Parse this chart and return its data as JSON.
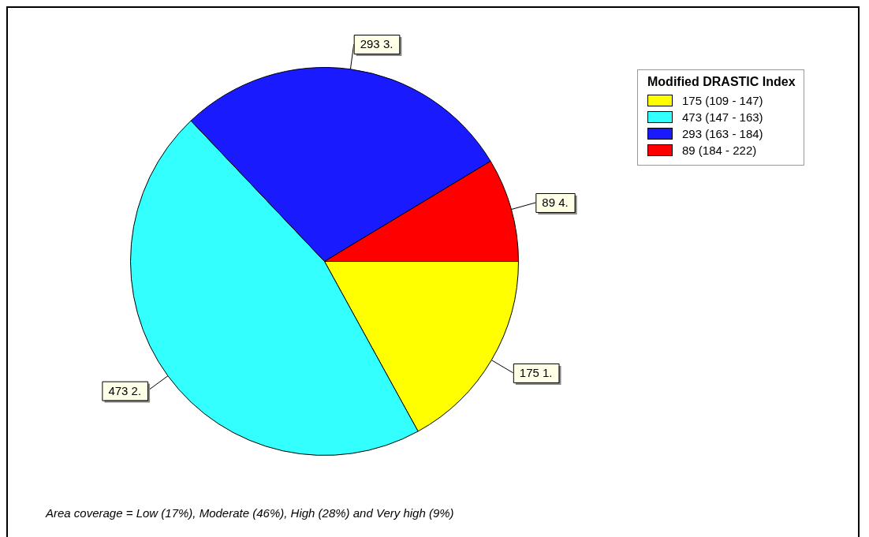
{
  "chart_data": {
    "type": "pie",
    "legend_title": "Modified DRASTIC Index",
    "legend": "top right",
    "categories": [
      "175 (109 - 147)",
      "473 (147 - 163)",
      "293 (163 - 184)",
      "89 (184 - 222)"
    ],
    "values": [
      175,
      473,
      293,
      89
    ],
    "colors": [
      "#ffff00",
      "#33ffff",
      "#1a1aff",
      "#ff0000"
    ],
    "value_labels": [
      "175 1.",
      "473 2.",
      "293 3.",
      "89 4."
    ],
    "annotations": [
      "Area coverage = Low (17%), Moderate (46%), High (28%) and Very high (9%)"
    ]
  }
}
